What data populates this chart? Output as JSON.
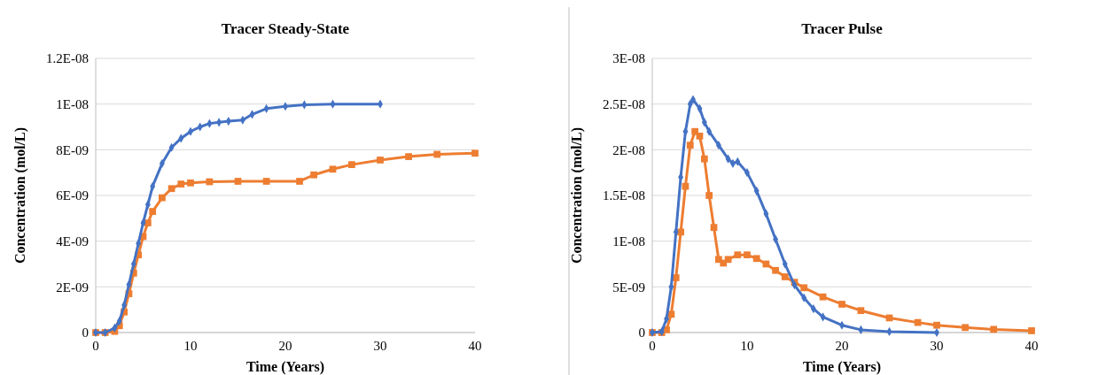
{
  "chart_data": [
    {
      "type": "line",
      "title": "Tracer Steady-State",
      "xlabel": "Time (Years)",
      "ylabel": "Concentration  (mol/L)",
      "xlim": [
        0,
        40
      ],
      "xticks": [
        0,
        10,
        20,
        30,
        40
      ],
      "ylim": [
        0,
        1.2e-08
      ],
      "yticks": [
        {
          "value": 0,
          "label": "0"
        },
        {
          "value": 2e-09,
          "label": "2E-09"
        },
        {
          "value": 4e-09,
          "label": "4E-09"
        },
        {
          "value": 6e-09,
          "label": "6E-09"
        },
        {
          "value": 8e-09,
          "label": "8E-09"
        },
        {
          "value": 1e-08,
          "label": "1E-08"
        },
        {
          "value": 1.2e-08,
          "label": "1.2E-08"
        }
      ],
      "grid": "y",
      "series": [
        {
          "color": "#ed7d31",
          "marker": "square",
          "x": [
            0,
            1,
            2,
            2.5,
            3,
            3.5,
            4,
            4.5,
            5,
            5.5,
            6,
            7,
            8,
            9,
            10,
            12,
            15,
            18,
            21.5,
            23,
            25,
            27,
            30,
            33,
            36,
            40
          ],
          "values": [
            0,
            0,
            5e-11,
            3e-10,
            9e-10,
            1.7e-09,
            2.6e-09,
            3.4e-09,
            4.2e-09,
            4.8e-09,
            5.3e-09,
            5.9e-09,
            6.3e-09,
            6.5e-09,
            6.55e-09,
            6.6e-09,
            6.62e-09,
            6.62e-09,
            6.62e-09,
            6.9e-09,
            7.15e-09,
            7.35e-09,
            7.55e-09,
            7.7e-09,
            7.8e-09,
            7.85e-09
          ]
        },
        {
          "color": "#4472c4",
          "marker": "diamond",
          "x": [
            0,
            1,
            2,
            2.5,
            3,
            3.5,
            4,
            4.5,
            5,
            5.5,
            6,
            7,
            8,
            9,
            10,
            11,
            12,
            13,
            14,
            15.5,
            16.5,
            18,
            20,
            22,
            25,
            30
          ],
          "values": [
            0,
            0,
            2e-10,
            5e-10,
            1.2e-09,
            2.1e-09,
            3e-09,
            3.9e-09,
            4.8e-09,
            5.6e-09,
            6.4e-09,
            7.4e-09,
            8.1e-09,
            8.5e-09,
            8.8e-09,
            9e-09,
            9.15e-09,
            9.2e-09,
            9.25e-09,
            9.3e-09,
            9.55e-09,
            9.8e-09,
            9.9e-09,
            9.97e-09,
            1e-08,
            1e-08
          ]
        }
      ]
    },
    {
      "type": "line",
      "title": "Tracer Pulse",
      "xlabel": "Time (Years)",
      "ylabel": "Concentration  (mol/L)",
      "xlim": [
        0,
        40
      ],
      "xticks": [
        0,
        10,
        20,
        30,
        40
      ],
      "ylim": [
        0,
        3e-08
      ],
      "yticks": [
        {
          "value": 0,
          "label": "0"
        },
        {
          "value": 5e-09,
          "label": "5E-09"
        },
        {
          "value": 1e-08,
          "label": "1E-08"
        },
        {
          "value": 1.5e-08,
          "label": "1.5E-08"
        },
        {
          "value": 2e-08,
          "label": "2E-08"
        },
        {
          "value": 2.5e-08,
          "label": "2.5E-08"
        },
        {
          "value": 3e-08,
          "label": "3E-08"
        }
      ],
      "grid": "y",
      "series": [
        {
          "color": "#ed7d31",
          "marker": "square",
          "x": [
            0,
            1,
            1.5,
            2,
            2.5,
            3,
            3.5,
            4,
            4.5,
            5,
            5.5,
            6,
            6.5,
            7,
            7.5,
            8,
            9,
            10,
            11,
            12,
            13,
            14,
            15,
            16,
            18,
            20,
            22,
            25,
            28,
            30,
            33,
            36,
            40
          ],
          "values": [
            0,
            0,
            3e-10,
            2e-09,
            6e-09,
            1.1e-08,
            1.6e-08,
            2.05e-08,
            2.2e-08,
            2.15e-08,
            1.9e-08,
            1.5e-08,
            1.15e-08,
            8e-09,
            7.6e-09,
            8e-09,
            8.5e-09,
            8.5e-09,
            8.1e-09,
            7.5e-09,
            6.8e-09,
            6.1e-09,
            5.5e-09,
            4.9e-09,
            3.9e-09,
            3.1e-09,
            2.4e-09,
            1.6e-09,
            1.1e-09,
            8e-10,
            5.5e-10,
            3.5e-10,
            2e-10
          ]
        },
        {
          "color": "#4472c4",
          "marker": "diamond",
          "x": [
            0,
            1,
            1.5,
            2,
            2.5,
            3,
            3.5,
            4,
            4.3,
            5,
            5.5,
            6,
            7,
            8,
            8.5,
            9,
            10,
            11,
            12,
            13,
            14,
            15,
            16,
            17,
            18,
            20,
            22,
            25,
            30
          ],
          "values": [
            0,
            1e-10,
            1.5e-09,
            5e-09,
            1.1e-08,
            1.7e-08,
            2.2e-08,
            2.5e-08,
            2.55e-08,
            2.45e-08,
            2.3e-08,
            2.2e-08,
            2.05e-08,
            1.9e-08,
            1.85e-08,
            1.87e-08,
            1.75e-08,
            1.55e-08,
            1.3e-08,
            1.02e-08,
            7.5e-09,
            5.2e-09,
            3.8e-09,
            2.6e-09,
            1.7e-09,
            8e-10,
            3e-10,
            1e-10,
            0
          ]
        }
      ]
    }
  ]
}
